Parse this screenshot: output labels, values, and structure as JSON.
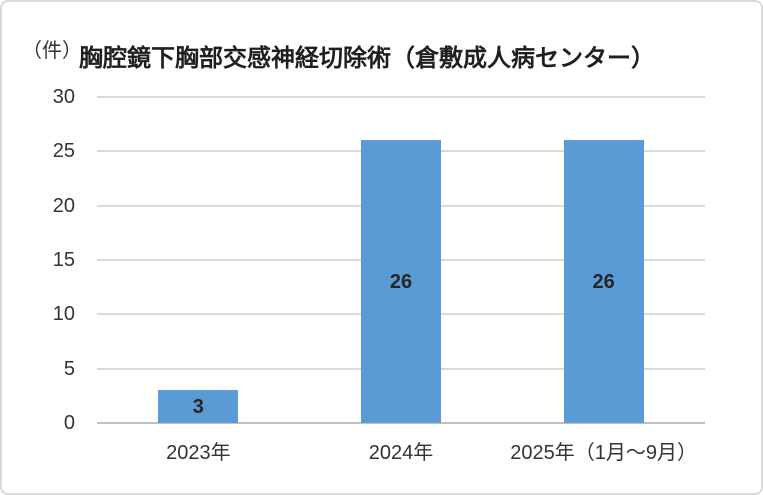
{
  "chart_data": {
    "type": "bar",
    "title": "胸腔鏡下胸部交感神経切除術（倉敷成人病センター）",
    "unit_label": "（件）",
    "categories": [
      "2023年",
      "2024年",
      "2025年（1月～9月）"
    ],
    "values": [
      3,
      26,
      26
    ],
    "data_labels": [
      "3",
      "26",
      "26"
    ],
    "yticks": [
      0,
      5,
      10,
      15,
      20,
      25,
      30
    ],
    "ylim": [
      0,
      30
    ],
    "xlabel": "",
    "ylabel": "（件）",
    "grid": true,
    "legend_position": "none",
    "bar_color": "#5b9bd5",
    "data_label_color": "#262626",
    "gridline_color": "#d9d9d9",
    "axis_line_color": "#c0c0c0",
    "text_color": "#333333",
    "title_color": "#1f1f1f"
  }
}
